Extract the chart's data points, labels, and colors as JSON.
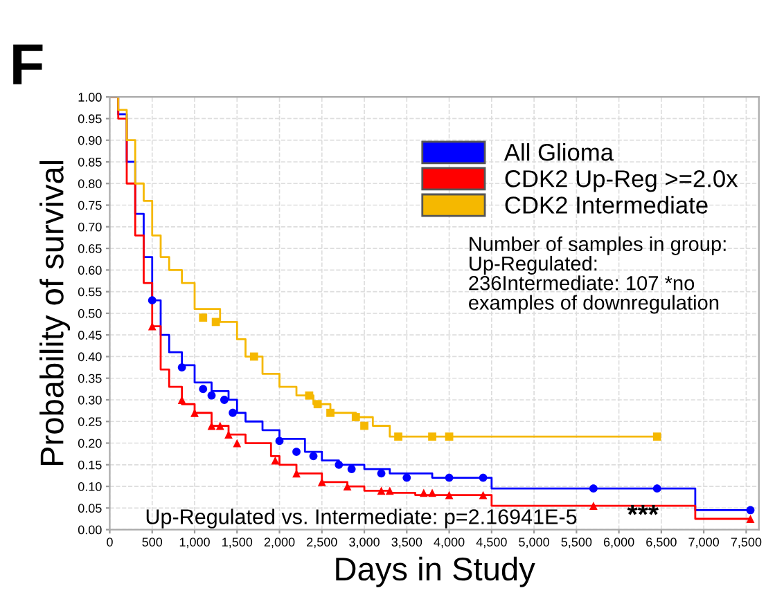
{
  "chart_data": {
    "type": "step",
    "xlabel": "Days in Study",
    "ylabel": "Probability of survival",
    "annotations": [
      "F",
      "Number of samples in group: Up-Regulated: 236Intermediate: 107 *no examples of downregulation",
      "Up-Regulated vs. Intermediate: p=2.16941E-5",
      "***"
    ],
    "xlim": [
      0,
      7650
    ],
    "ylim": [
      0,
      1.0
    ],
    "xticks": [
      0,
      500,
      {
        "value": 1000,
        "label": "1,000"
      },
      {
        "value": 1500,
        "label": "1,500"
      },
      {
        "value": 2000,
        "label": "2,000"
      },
      {
        "value": 2500,
        "label": "2,500"
      },
      {
        "value": 3000,
        "label": "3,000"
      },
      {
        "value": 3500,
        "label": "3,500"
      },
      {
        "value": 4000,
        "label": "4,000"
      },
      {
        "value": 4500,
        "label": "4,500"
      },
      {
        "value": 5000,
        "label": "5,000"
      },
      {
        "value": 5500,
        "label": "5,500"
      },
      {
        "value": 6000,
        "label": "6,000"
      },
      {
        "value": 6500,
        "label": "6,500"
      },
      {
        "value": 7000,
        "label": "7,000"
      },
      {
        "value": 7500,
        "label": "7,500"
      }
    ],
    "yticks": [
      {
        "value": 0,
        "label": "0.00"
      },
      0.05,
      {
        "value": 0.1,
        "label": "0.10"
      },
      0.15,
      {
        "value": 0.2,
        "label": "0.20"
      },
      0.25,
      {
        "value": 0.3,
        "label": "0.30"
      },
      0.35,
      {
        "value": 0.4,
        "label": "0.40"
      },
      0.45,
      {
        "value": 0.5,
        "label": "0.50"
      },
      0.55,
      {
        "value": 0.6,
        "label": "0.60"
      },
      0.65,
      {
        "value": 0.7,
        "label": "0.70"
      },
      0.75,
      {
        "value": 0.8,
        "label": "0.80"
      },
      0.85,
      {
        "value": 0.9,
        "label": "0.90"
      },
      0.95,
      {
        "value": 1.0,
        "label": "1.00"
      }
    ],
    "grid": true,
    "legend": "top right",
    "series": [
      {
        "name": "All Glioma",
        "color": "#0000ff",
        "marker": "none",
        "x": [
          0,
          100,
          200,
          300,
          400,
          500,
          600,
          700,
          850,
          1000,
          1200,
          1400,
          1500,
          1600,
          1800,
          2000,
          2300,
          2500,
          2700,
          3000,
          3300,
          3800,
          4450,
          4500,
          6900,
          7550
        ],
        "values": [
          1.0,
          0.96,
          0.85,
          0.73,
          0.63,
          0.53,
          0.45,
          0.41,
          0.38,
          0.34,
          0.32,
          0.3,
          0.27,
          0.25,
          0.23,
          0.21,
          0.18,
          0.16,
          0.15,
          0.14,
          0.13,
          0.12,
          0.12,
          0.095,
          0.045,
          0.045
        ]
      },
      {
        "name": "CDK2 Up-Reg >=2.0x",
        "color": "#ff0000",
        "marker": "none",
        "x": [
          0,
          100,
          200,
          300,
          400,
          500,
          600,
          700,
          850,
          1000,
          1200,
          1400,
          1600,
          1900,
          2000,
          2200,
          2500,
          2800,
          3000,
          3300,
          3600,
          4450,
          4500,
          6900,
          7550
        ],
        "values": [
          1.0,
          0.95,
          0.8,
          0.68,
          0.57,
          0.47,
          0.37,
          0.33,
          0.29,
          0.27,
          0.24,
          0.22,
          0.2,
          0.17,
          0.15,
          0.13,
          0.11,
          0.1,
          0.09,
          0.085,
          0.08,
          0.08,
          0.055,
          0.025,
          0.025
        ]
      },
      {
        "name": "CDK2 Intermediate",
        "color": "#f5b800",
        "marker": "none",
        "x": [
          0,
          100,
          200,
          300,
          400,
          500,
          600,
          700,
          850,
          1000,
          1300,
          1500,
          1600,
          1800,
          2000,
          2200,
          2400,
          2600,
          2900,
          3100,
          3300,
          6450
        ],
        "values": [
          1.0,
          0.97,
          0.9,
          0.8,
          0.76,
          0.68,
          0.63,
          0.6,
          0.57,
          0.51,
          0.48,
          0.44,
          0.4,
          0.36,
          0.33,
          0.31,
          0.29,
          0.27,
          0.26,
          0.24,
          0.215,
          0.215
        ]
      },
      {
        "type": "scatter",
        "color": "#0000ff",
        "marker": "circle",
        "x": [
          500,
          850,
          1100,
          1200,
          1350,
          1450,
          2000,
          2200,
          2400,
          2700,
          2850,
          3200,
          3500,
          4000,
          4400,
          5700,
          6450,
          7550
        ],
        "values": [
          0.53,
          0.375,
          0.325,
          0.31,
          0.3,
          0.27,
          0.205,
          0.18,
          0.17,
          0.15,
          0.14,
          0.13,
          0.12,
          0.12,
          0.12,
          0.095,
          0.095,
          0.045
        ]
      },
      {
        "type": "scatter",
        "color": "#ff0000",
        "marker": "triangle",
        "x": [
          500,
          850,
          1000,
          1200,
          1300,
          1400,
          1500,
          1950,
          2200,
          2500,
          2800,
          3200,
          3300,
          3700,
          3800,
          4000,
          4400,
          5700,
          7550
        ],
        "values": [
          0.47,
          0.3,
          0.27,
          0.24,
          0.24,
          0.22,
          0.2,
          0.16,
          0.13,
          0.11,
          0.1,
          0.09,
          0.09,
          0.085,
          0.085,
          0.08,
          0.08,
          0.055,
          0.025
        ]
      },
      {
        "type": "scatter",
        "color": "#f5b800",
        "marker": "square",
        "x": [
          1100,
          1250,
          1700,
          2350,
          2450,
          2600,
          2900,
          3000,
          3400,
          3800,
          4000,
          6450
        ],
        "values": [
          0.49,
          0.48,
          0.4,
          0.31,
          0.29,
          0.27,
          0.26,
          0.24,
          0.215,
          0.215,
          0.215,
          0.215
        ]
      }
    ]
  }
}
